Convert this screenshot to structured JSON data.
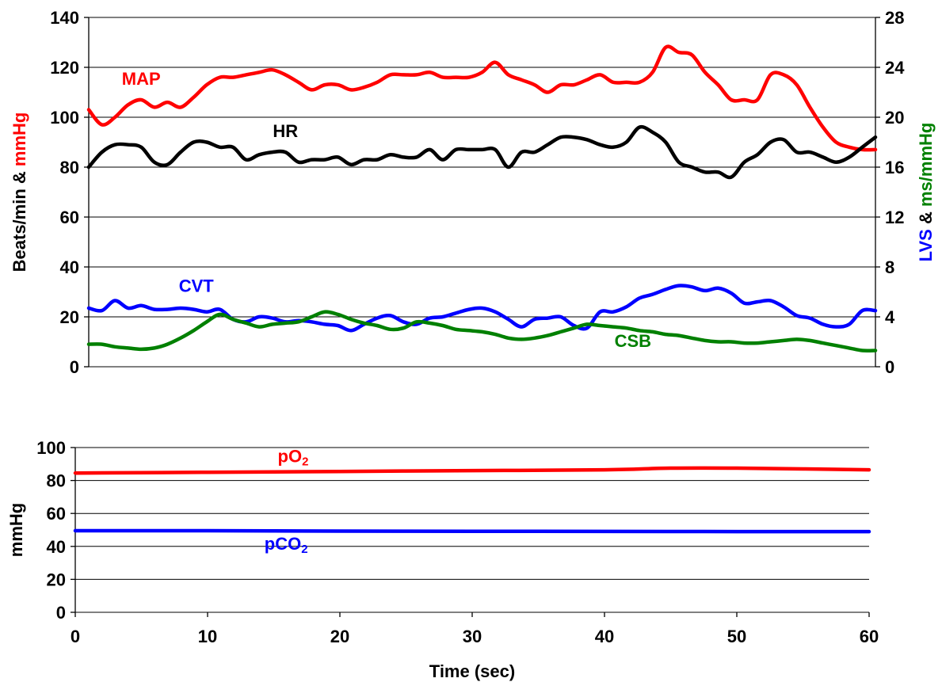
{
  "colors": {
    "red": "#ff0000",
    "black": "#000000",
    "blue": "#0000ff",
    "green": "#008000",
    "grid": "#000000",
    "background": "#ffffff"
  },
  "chart_data": [
    {
      "type": "line",
      "ylabel_parts": [
        {
          "text": "Beats/min & ",
          "color": "#000000"
        },
        {
          "text": "mmHg",
          "color": "#ff0000"
        }
      ],
      "y2label_parts": [
        {
          "text": "LVS",
          "color": "#0000ff"
        },
        {
          "text": " & ",
          "color": "#000000"
        },
        {
          "text": "ms/mmHg",
          "color": "#008000"
        }
      ],
      "xlim": [
        0,
        60
      ],
      "ylim": [
        0,
        140
      ],
      "y2lim": [
        0,
        28
      ],
      "yticks": [
        "0",
        "20",
        "40",
        "60",
        "80",
        "100",
        "120",
        "140"
      ],
      "y2ticks": [
        "0",
        "4",
        "8",
        "12",
        "16",
        "20",
        "24",
        "28"
      ],
      "grid": true,
      "series": [
        {
          "name": "MAP",
          "color": "#ff0000",
          "axis": "left",
          "x": [
            0,
            1,
            2,
            3,
            4,
            5,
            6,
            7,
            8,
            9,
            10,
            11,
            12,
            13,
            14,
            15,
            16,
            17,
            18,
            19,
            20,
            21,
            22,
            23,
            24,
            25,
            26,
            27,
            28,
            29,
            30,
            31,
            32,
            33,
            34,
            35,
            36,
            37,
            38,
            39,
            40,
            41,
            42,
            43,
            44,
            45,
            46,
            47,
            48,
            49,
            50,
            51,
            52,
            53,
            54,
            55,
            56,
            57,
            58,
            59,
            60
          ],
          "values": [
            103,
            97,
            100,
            105,
            107,
            104,
            106,
            104,
            108,
            113,
            116,
            116,
            117,
            118,
            119,
            117,
            114,
            111,
            113,
            113,
            111,
            112,
            114,
            117,
            117,
            117,
            118,
            116,
            116,
            116,
            118,
            122,
            117,
            115,
            113,
            110,
            113,
            113,
            115,
            117,
            114,
            114,
            114,
            118,
            128,
            126,
            125,
            118,
            113,
            107,
            107,
            107,
            117,
            117,
            113,
            104,
            96,
            90,
            88,
            87,
            87
          ]
        },
        {
          "name": "HR",
          "color": "#000000",
          "axis": "left",
          "x": [
            0,
            1,
            2,
            3,
            4,
            5,
            6,
            7,
            8,
            9,
            10,
            11,
            12,
            13,
            14,
            15,
            16,
            17,
            18,
            19,
            20,
            21,
            22,
            23,
            24,
            25,
            26,
            27,
            28,
            29,
            30,
            31,
            32,
            33,
            34,
            35,
            36,
            37,
            38,
            39,
            40,
            41,
            42,
            43,
            44,
            45,
            46,
            47,
            48,
            49,
            50,
            51,
            52,
            53,
            54,
            55,
            56,
            57,
            58,
            59,
            60
          ],
          "values": [
            80,
            86,
            89,
            89,
            88,
            82,
            81,
            86,
            90,
            90,
            88,
            88,
            83,
            85,
            86,
            86,
            82,
            83,
            83,
            84,
            81,
            83,
            83,
            85,
            84,
            84,
            87,
            83,
            87,
            87,
            87,
            87,
            80,
            86,
            86,
            89,
            92,
            92,
            91,
            89,
            88,
            90,
            96,
            94,
            90,
            82,
            80,
            78,
            78,
            76,
            82,
            85,
            90,
            91,
            86,
            86,
            84,
            82,
            84,
            88,
            92
          ]
        },
        {
          "name": "CVT",
          "color": "#0000ff",
          "axis": "right",
          "x": [
            0,
            1,
            2,
            3,
            4,
            5,
            6,
            7,
            8,
            9,
            10,
            11,
            12,
            13,
            14,
            15,
            16,
            17,
            18,
            19,
            20,
            21,
            22,
            23,
            24,
            25,
            26,
            27,
            28,
            29,
            30,
            31,
            32,
            33,
            34,
            35,
            36,
            37,
            38,
            39,
            40,
            41,
            42,
            43,
            44,
            45,
            46,
            47,
            48,
            49,
            50,
            51,
            52,
            53,
            54,
            55,
            56,
            57,
            58,
            59,
            60
          ],
          "values": [
            4.7,
            4.5,
            5.3,
            4.7,
            4.9,
            4.6,
            4.6,
            4.7,
            4.6,
            4.4,
            4.6,
            3.8,
            3.6,
            4.0,
            3.9,
            3.6,
            3.7,
            3.6,
            3.4,
            3.3,
            2.9,
            3.4,
            3.9,
            4.1,
            3.6,
            3.4,
            3.9,
            4.0,
            4.3,
            4.6,
            4.7,
            4.4,
            3.8,
            3.2,
            3.8,
            3.9,
            4.0,
            3.3,
            3.1,
            4.4,
            4.4,
            4.8,
            5.5,
            5.8,
            6.2,
            6.5,
            6.4,
            6.1,
            6.3,
            5.9,
            5.1,
            5.2,
            5.3,
            4.8,
            4.1,
            3.9,
            3.4,
            3.2,
            3.4,
            4.5,
            4.5
          ]
        },
        {
          "name": "CSB",
          "color": "#008000",
          "axis": "right",
          "x": [
            0,
            1,
            2,
            3,
            4,
            5,
            6,
            7,
            8,
            9,
            10,
            11,
            12,
            13,
            14,
            15,
            16,
            17,
            18,
            19,
            20,
            21,
            22,
            23,
            24,
            25,
            26,
            27,
            28,
            29,
            30,
            31,
            32,
            33,
            34,
            35,
            36,
            37,
            38,
            39,
            40,
            41,
            42,
            43,
            44,
            45,
            46,
            47,
            48,
            49,
            50,
            51,
            52,
            53,
            54,
            55,
            56,
            57,
            58,
            59,
            60
          ],
          "values": [
            1.8,
            1.8,
            1.6,
            1.5,
            1.4,
            1.5,
            1.8,
            2.3,
            2.9,
            3.6,
            4.2,
            3.8,
            3.5,
            3.2,
            3.4,
            3.5,
            3.6,
            4.0,
            4.4,
            4.2,
            3.8,
            3.5,
            3.3,
            3.0,
            3.1,
            3.6,
            3.5,
            3.3,
            3.0,
            2.9,
            2.8,
            2.6,
            2.3,
            2.2,
            2.3,
            2.5,
            2.8,
            3.1,
            3.4,
            3.3,
            3.2,
            3.1,
            2.9,
            2.8,
            2.6,
            2.5,
            2.3,
            2.1,
            2.0,
            2.0,
            1.9,
            1.9,
            2.0,
            2.1,
            2.2,
            2.1,
            1.9,
            1.7,
            1.5,
            1.3,
            1.3
          ]
        }
      ],
      "annotations": [
        {
          "text": "MAP",
          "x": 4,
          "y": 113,
          "axis": "left",
          "color": "#ff0000"
        },
        {
          "text": "HR",
          "x": 15,
          "y": 92,
          "axis": "left",
          "color": "#000000"
        },
        {
          "text": "CVT",
          "x": 8.2,
          "y": 30,
          "axis": "left",
          "color": "#0000ff"
        },
        {
          "text": "CSB",
          "x": 41.5,
          "y": 8,
          "axis": "left",
          "color": "#008000"
        }
      ]
    },
    {
      "type": "line",
      "ylabel": "mmHg",
      "xlabel": "Time (sec)",
      "xlim": [
        0,
        60
      ],
      "ylim": [
        0,
        100
      ],
      "xticks": [
        "0",
        "10",
        "20",
        "30",
        "40",
        "50",
        "60"
      ],
      "yticks": [
        "0",
        "20",
        "40",
        "60",
        "80",
        "100"
      ],
      "grid": true,
      "series": [
        {
          "name": "pO2",
          "color": "#ff0000",
          "x": [
            0,
            10,
            20,
            30,
            40,
            45,
            50,
            55,
            60
          ],
          "values": [
            84.5,
            85,
            85.5,
            86,
            86.5,
            87.5,
            87.5,
            87,
            86.5
          ]
        },
        {
          "name": "pCO2",
          "color": "#0000ff",
          "x": [
            0,
            10,
            20,
            30,
            40,
            50,
            60
          ],
          "values": [
            49.5,
            49.5,
            49.3,
            49.2,
            49.1,
            49.0,
            49.0
          ]
        }
      ],
      "annotations": [
        {
          "text": "pO2",
          "base": "pO",
          "sub": "2",
          "x": 15.3,
          "y": 91,
          "color": "#ff0000"
        },
        {
          "text": "pCO2",
          "base": "pCO",
          "sub": "2",
          "x": 14.3,
          "y": 38,
          "color": "#0000ff"
        }
      ]
    }
  ]
}
